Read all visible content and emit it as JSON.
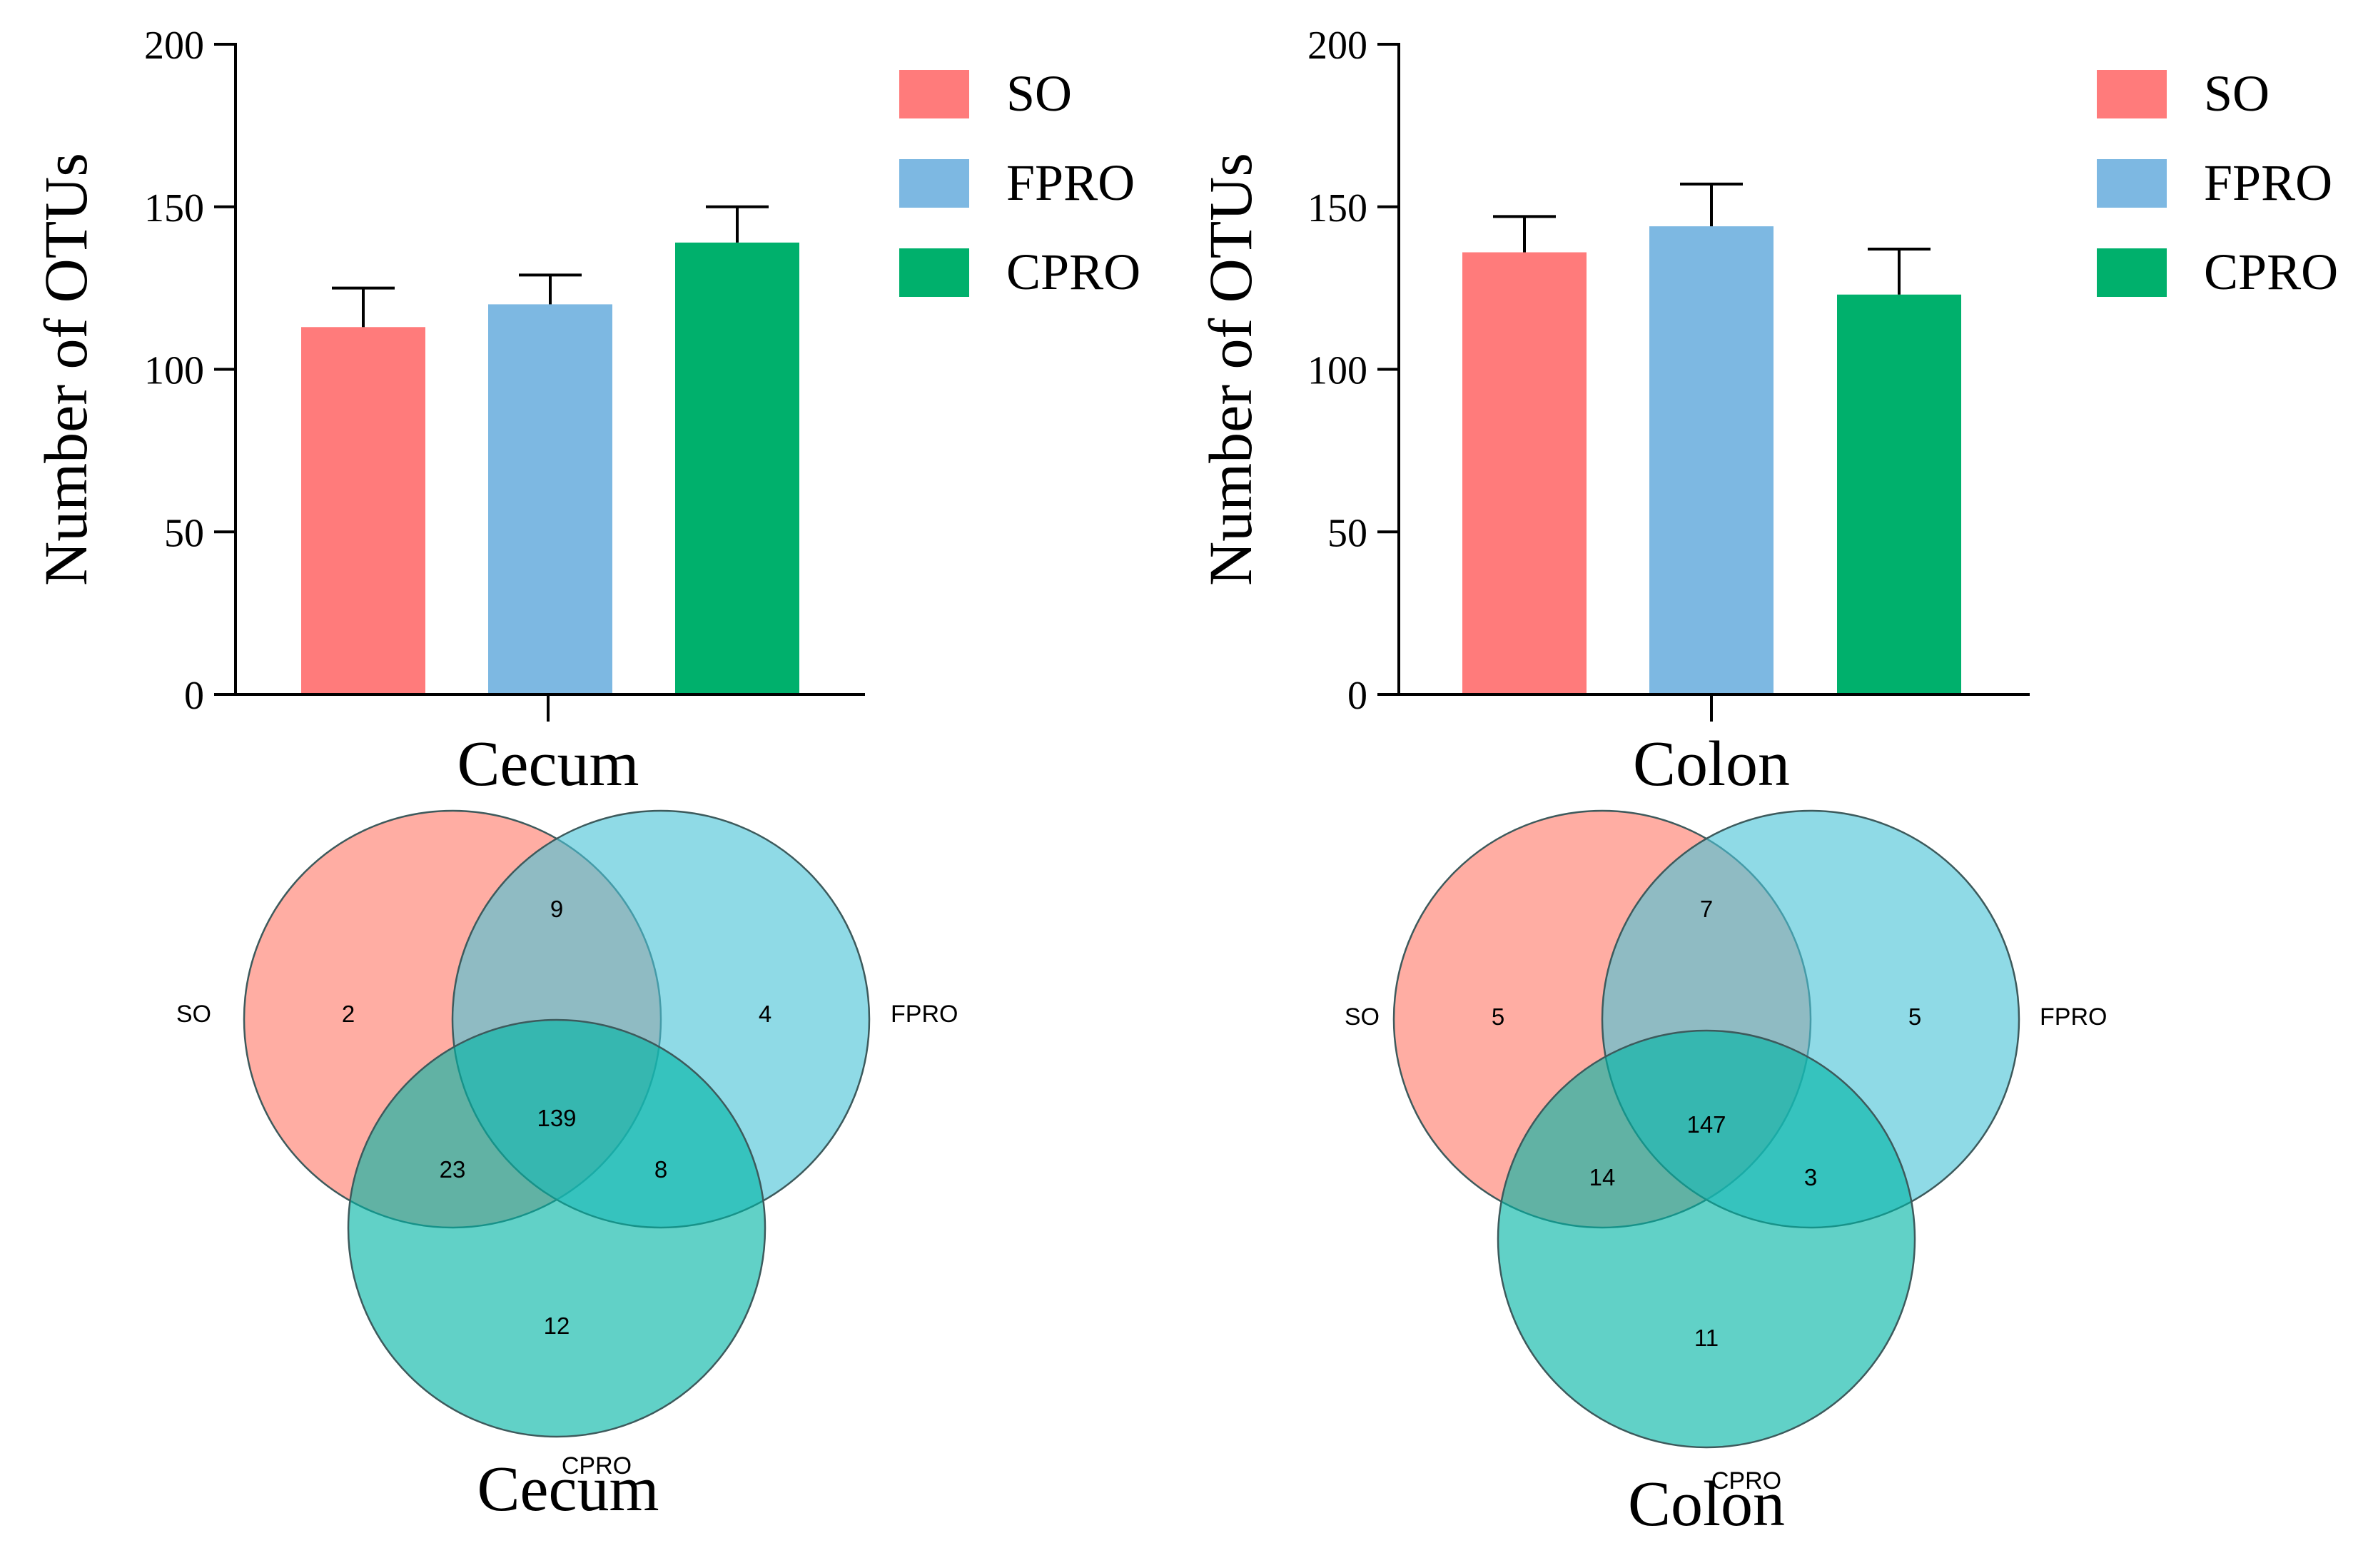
{
  "chart_data": [
    {
      "type": "bar",
      "id": "cecum",
      "title": "Cecum",
      "xlabel": "Cecum",
      "ylabel": "Number of OTUs",
      "ylim": [
        0,
        200
      ],
      "yticks": [
        0,
        50,
        100,
        150,
        200
      ],
      "tick_labels": [
        "0",
        "50",
        "100",
        "150",
        "200"
      ],
      "categories": [
        "SO",
        "FPRO",
        "CPRO"
      ],
      "values": [
        113,
        120,
        139
      ],
      "errors": [
        12,
        9,
        11
      ],
      "colors": [
        "#ff7b7b",
        "#7db8e2",
        "#00b06c"
      ],
      "legend": [
        "SO",
        "FPRO",
        "CPRO"
      ],
      "legend_position": "right"
    },
    {
      "type": "bar",
      "id": "colon",
      "title": "Colon",
      "xlabel": "Colon",
      "ylabel": "Number of OTUs",
      "ylim": [
        0,
        200
      ],
      "yticks": [
        0,
        50,
        100,
        150,
        200
      ],
      "tick_labels": [
        "0",
        "50",
        "100",
        "150",
        "200"
      ],
      "categories": [
        "SO",
        "FPRO",
        "CPRO"
      ],
      "values": [
        136,
        144,
        123
      ],
      "errors": [
        11,
        13,
        14
      ],
      "colors": [
        "#ff7b7b",
        "#7db8e2",
        "#00b06c"
      ],
      "legend": [
        "SO",
        "FPRO",
        "CPRO"
      ],
      "legend_position": "right"
    },
    {
      "type": "venn",
      "id": "cecum-venn",
      "title": "Cecum",
      "sets": [
        "SO",
        "FPRO",
        "CPRO"
      ],
      "set_colors": [
        "#ff7b6b",
        "#4ac4d6",
        "#00b4a4"
      ],
      "regions": {
        "SO_only": "2",
        "FPRO_only": "4",
        "CPRO_only": "12",
        "SO_FPRO": "9",
        "SO_CPRO": "23",
        "FPRO_CPRO": "8",
        "all": "139"
      }
    },
    {
      "type": "venn",
      "id": "colon-venn",
      "title": "Colon",
      "sets": [
        "SO",
        "FPRO",
        "CPRO"
      ],
      "set_colors": [
        "#ff7b6b",
        "#4ac4d6",
        "#00b4a4"
      ],
      "regions": {
        "SO_only": "5",
        "FPRO_only": "5",
        "CPRO_only": "11",
        "SO_FPRO": "7",
        "SO_CPRO": "14",
        "FPRO_CPRO": "3",
        "all": "147"
      }
    }
  ]
}
